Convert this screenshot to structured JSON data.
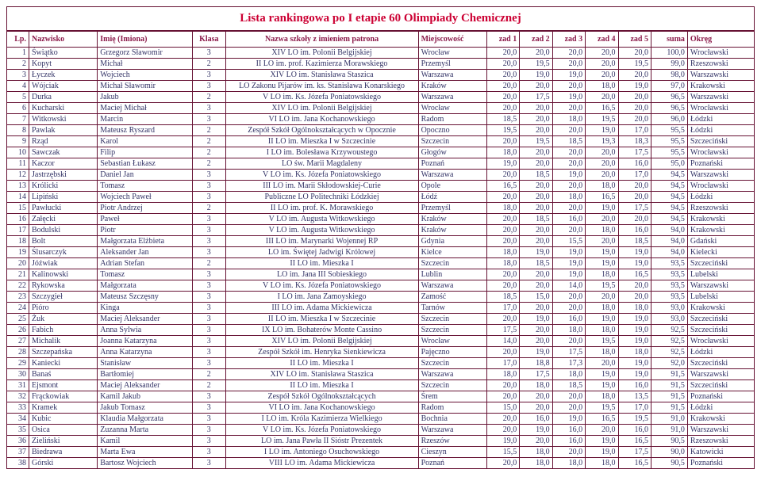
{
  "title": "Lista rankingowa po I etapie 60 Olimpiady Chemicznej",
  "title_color": "#cc0033",
  "border_color": "#661133",
  "header_color": "#8b1a4a",
  "row_color": "#333366",
  "columns": [
    {
      "key": "lp",
      "label": "Lp.",
      "cls": "num col-lp"
    },
    {
      "key": "nazwisko",
      "label": "Nazwisko",
      "cls": "col-nazwisko"
    },
    {
      "key": "imie",
      "label": "Imię (Imiona)",
      "cls": "col-imie"
    },
    {
      "key": "klasa",
      "label": "Klasa",
      "cls": "center col-klasa"
    },
    {
      "key": "szkola",
      "label": "Nazwa szkoły z imieniem patrona",
      "cls": "center col-szkola"
    },
    {
      "key": "miejsc",
      "label": "Miejscowość",
      "cls": "col-miejsc"
    },
    {
      "key": "z1",
      "label": "zad 1",
      "cls": "num col-zad"
    },
    {
      "key": "z2",
      "label": "zad 2",
      "cls": "num col-zad"
    },
    {
      "key": "z3",
      "label": "zad 3",
      "cls": "num col-zad"
    },
    {
      "key": "z4",
      "label": "zad 4",
      "cls": "num col-zad"
    },
    {
      "key": "z5",
      "label": "zad 5",
      "cls": "num col-zad"
    },
    {
      "key": "suma",
      "label": "suma",
      "cls": "num col-suma"
    },
    {
      "key": "okreg",
      "label": "Okręg",
      "cls": "col-okreg"
    }
  ],
  "rows": [
    {
      "lp": "1",
      "nazwisko": "Świątko",
      "imie": "Grzegorz Sławomir",
      "klasa": "3",
      "szkola": "XIV LO im. Polonii Belgijskiej",
      "miejsc": "Wrocław",
      "z1": "20,0",
      "z2": "20,0",
      "z3": "20,0",
      "z4": "20,0",
      "z5": "20,0",
      "suma": "100,0",
      "okreg": "Wrocławski"
    },
    {
      "lp": "2",
      "nazwisko": "Kopyt",
      "imie": "Michał",
      "klasa": "2",
      "szkola": "II LO im. prof. Kazimierza Morawskiego",
      "miejsc": "Przemyśl",
      "z1": "20,0",
      "z2": "19,5",
      "z3": "20,0",
      "z4": "20,0",
      "z5": "19,5",
      "suma": "99,0",
      "okreg": "Rzeszowski"
    },
    {
      "lp": "3",
      "nazwisko": "Łyczek",
      "imie": "Wojciech",
      "klasa": "3",
      "szkola": "XIV LO im. Stanisława Staszica",
      "miejsc": "Warszawa",
      "z1": "20,0",
      "z2": "19,0",
      "z3": "19,0",
      "z4": "20,0",
      "z5": "20,0",
      "suma": "98,0",
      "okreg": "Warszawski"
    },
    {
      "lp": "4",
      "nazwisko": "Wójciak",
      "imie": "Michał Sławomir",
      "klasa": "3",
      "szkola": "LO Zakonu Pijarów im. ks. Stanisława Konarskiego",
      "miejsc": "Kraków",
      "z1": "20,0",
      "z2": "20,0",
      "z3": "20,0",
      "z4": "18,0",
      "z5": "19,0",
      "suma": "97,0",
      "okreg": "Krakowski"
    },
    {
      "lp": "5",
      "nazwisko": "Durka",
      "imie": "Jakub",
      "klasa": "2",
      "szkola": "V LO im. Ks. Józefa Poniatowskiego",
      "miejsc": "Warszawa",
      "z1": "20,0",
      "z2": "17,5",
      "z3": "19,0",
      "z4": "20,0",
      "z5": "20,0",
      "suma": "96,5",
      "okreg": "Warszawski"
    },
    {
      "lp": "6",
      "nazwisko": "Kucharski",
      "imie": "Maciej Michał",
      "klasa": "3",
      "szkola": "XIV LO im. Polonii Belgijskiej",
      "miejsc": "Wrocław",
      "z1": "20,0",
      "z2": "20,0",
      "z3": "20,0",
      "z4": "16,5",
      "z5": "20,0",
      "suma": "96,5",
      "okreg": "Wrocławski"
    },
    {
      "lp": "7",
      "nazwisko": "Witkowski",
      "imie": "Marcin",
      "klasa": "3",
      "szkola": "VI LO im. Jana Kochanowskiego",
      "miejsc": "Radom",
      "z1": "18,5",
      "z2": "20,0",
      "z3": "18,0",
      "z4": "19,5",
      "z5": "20,0",
      "suma": "96,0",
      "okreg": "Łódzki"
    },
    {
      "lp": "8",
      "nazwisko": "Pawlak",
      "imie": "Mateusz Ryszard",
      "klasa": "2",
      "szkola": "Zespół Szkół Ogólnokształcących w Opocznie",
      "miejsc": "Opoczno",
      "z1": "19,5",
      "z2": "20,0",
      "z3": "20,0",
      "z4": "19,0",
      "z5": "17,0",
      "suma": "95,5",
      "okreg": "Łódzki"
    },
    {
      "lp": "9",
      "nazwisko": "Rząd",
      "imie": "Karol",
      "klasa": "2",
      "szkola": "II LO im. Mieszka I w Szczecinie",
      "miejsc": "Szczecin",
      "z1": "20,0",
      "z2": "19,5",
      "z3": "18,5",
      "z4": "19,3",
      "z5": "18,3",
      "suma": "95,5",
      "okreg": "Szczeciński"
    },
    {
      "lp": "10",
      "nazwisko": "Sawczak",
      "imie": "Filip",
      "klasa": "2",
      "szkola": "I LO im. Bolesława Krzywoustego",
      "miejsc": "Głogów",
      "z1": "18,0",
      "z2": "20,0",
      "z3": "20,0",
      "z4": "20,0",
      "z5": "17,5",
      "suma": "95,5",
      "okreg": "Wrocławski"
    },
    {
      "lp": "11",
      "nazwisko": "Kaczor",
      "imie": "Sebastian Łukasz",
      "klasa": "2",
      "szkola": "LO św. Marii Magdaleny",
      "miejsc": "Poznań",
      "z1": "19,0",
      "z2": "20,0",
      "z3": "20,0",
      "z4": "20,0",
      "z5": "16,0",
      "suma": "95,0",
      "okreg": "Poznański"
    },
    {
      "lp": "12",
      "nazwisko": "Jastrzębski",
      "imie": "Daniel Jan",
      "klasa": "3",
      "szkola": "V LO im. Ks. Józefa Poniatowskiego",
      "miejsc": "Warszawa",
      "z1": "20,0",
      "z2": "18,5",
      "z3": "19,0",
      "z4": "20,0",
      "z5": "17,0",
      "suma": "94,5",
      "okreg": "Warszawski"
    },
    {
      "lp": "13",
      "nazwisko": "Królicki",
      "imie": "Tomasz",
      "klasa": "3",
      "szkola": "III LO im. Marii Skłodowskiej-Curie",
      "miejsc": "Opole",
      "z1": "16,5",
      "z2": "20,0",
      "z3": "20,0",
      "z4": "18,0",
      "z5": "20,0",
      "suma": "94,5",
      "okreg": "Wrocławski"
    },
    {
      "lp": "14",
      "nazwisko": "Lipiński",
      "imie": "Wojciech Paweł",
      "klasa": "3",
      "szkola": "Publiczne LO Politechniki Łódzkiej",
      "miejsc": "Łódź",
      "z1": "20,0",
      "z2": "20,0",
      "z3": "18,0",
      "z4": "16,5",
      "z5": "20,0",
      "suma": "94,5",
      "okreg": "Łódzki"
    },
    {
      "lp": "15",
      "nazwisko": "Pawłucki",
      "imie": "Piotr Andrzej",
      "klasa": "2",
      "szkola": "II LO im. prof. K. Morawskiego",
      "miejsc": "Przemyśl",
      "z1": "18,0",
      "z2": "20,0",
      "z3": "20,0",
      "z4": "19,0",
      "z5": "17,5",
      "suma": "94,5",
      "okreg": "Rzeszowski"
    },
    {
      "lp": "16",
      "nazwisko": "Załęcki",
      "imie": "Paweł",
      "klasa": "3",
      "szkola": "V LO im. Augusta Witkowskiego",
      "miejsc": "Kraków",
      "z1": "20,0",
      "z2": "18,5",
      "z3": "16,0",
      "z4": "20,0",
      "z5": "20,0",
      "suma": "94,5",
      "okreg": "Krakowski"
    },
    {
      "lp": "17",
      "nazwisko": "Bodulski",
      "imie": "Piotr",
      "klasa": "3",
      "szkola": "V LO im. Augusta Witkowskiego",
      "miejsc": "Kraków",
      "z1": "20,0",
      "z2": "20,0",
      "z3": "20,0",
      "z4": "18,0",
      "z5": "16,0",
      "suma": "94,0",
      "okreg": "Krakowski"
    },
    {
      "lp": "18",
      "nazwisko": "Bolt",
      "imie": "Małgorzata Elżbieta",
      "klasa": "3",
      "szkola": "III LO im. Marynarki Wojennej RP",
      "miejsc": "Gdynia",
      "z1": "20,0",
      "z2": "20,0",
      "z3": "15,5",
      "z4": "20,0",
      "z5": "18,5",
      "suma": "94,0",
      "okreg": "Gdański"
    },
    {
      "lp": "19",
      "nazwisko": "Ślusarczyk",
      "imie": "Aleksander Jan",
      "klasa": "3",
      "szkola": "LO im. Świętej Jadwigi Królowej",
      "miejsc": "Kielce",
      "z1": "18,0",
      "z2": "19,0",
      "z3": "19,0",
      "z4": "19,0",
      "z5": "19,0",
      "suma": "94,0",
      "okreg": "Kielecki"
    },
    {
      "lp": "20",
      "nazwisko": "Jóźwiak",
      "imie": "Adrian Stefan",
      "klasa": "2",
      "szkola": "II LO im. Mieszka I",
      "miejsc": "Szczecin",
      "z1": "18,0",
      "z2": "18,5",
      "z3": "19,0",
      "z4": "19,0",
      "z5": "19,0",
      "suma": "93,5",
      "okreg": "Szczeciński"
    },
    {
      "lp": "21",
      "nazwisko": "Kalinowski",
      "imie": "Tomasz",
      "klasa": "3",
      "szkola": "LO im. Jana III Sobieskiego",
      "miejsc": "Lublin",
      "z1": "20,0",
      "z2": "20,0",
      "z3": "19,0",
      "z4": "18,0",
      "z5": "16,5",
      "suma": "93,5",
      "okreg": "Lubelski"
    },
    {
      "lp": "22",
      "nazwisko": "Rykowska",
      "imie": "Małgorzata",
      "klasa": "3",
      "szkola": "V LO im. Ks. Józefa Poniatowskiego",
      "miejsc": "Warszawa",
      "z1": "20,0",
      "z2": "20,0",
      "z3": "14,0",
      "z4": "19,5",
      "z5": "20,0",
      "suma": "93,5",
      "okreg": "Warszawski"
    },
    {
      "lp": "23",
      "nazwisko": "Szczygieł",
      "imie": "Mateusz Szczęsny",
      "klasa": "3",
      "szkola": "I LO im. Jana Zamoyskiego",
      "miejsc": "Zamość",
      "z1": "18,5",
      "z2": "15,0",
      "z3": "20,0",
      "z4": "20,0",
      "z5": "20,0",
      "suma": "93,5",
      "okreg": "Lubelski"
    },
    {
      "lp": "24",
      "nazwisko": "Pióro",
      "imie": "Kinga",
      "klasa": "3",
      "szkola": "III LO im. Adama Mickiewicza",
      "miejsc": "Tarnów",
      "z1": "17,0",
      "z2": "20,0",
      "z3": "20,0",
      "z4": "18,0",
      "z5": "18,0",
      "suma": "93,0",
      "okreg": "Krakowski"
    },
    {
      "lp": "25",
      "nazwisko": "Żuk",
      "imie": "Maciej Aleksander",
      "klasa": "3",
      "szkola": "II LO im. Mieszka I w Szczecinie",
      "miejsc": "Szczecin",
      "z1": "20,0",
      "z2": "19,0",
      "z3": "16,0",
      "z4": "19,0",
      "z5": "19,0",
      "suma": "93,0",
      "okreg": "Szczeciński"
    },
    {
      "lp": "26",
      "nazwisko": "Fabich",
      "imie": "Anna Sylwia",
      "klasa": "3",
      "szkola": "IX LO im. Bohaterów Monte Cassino",
      "miejsc": "Szczecin",
      "z1": "17,5",
      "z2": "20,0",
      "z3": "18,0",
      "z4": "18,0",
      "z5": "19,0",
      "suma": "92,5",
      "okreg": "Szczeciński"
    },
    {
      "lp": "27",
      "nazwisko": "Michalik",
      "imie": "Joanna Katarzyna",
      "klasa": "3",
      "szkola": "XIV LO im. Polonii Belgijskiej",
      "miejsc": "Wrocław",
      "z1": "14,0",
      "z2": "20,0",
      "z3": "20,0",
      "z4": "19,5",
      "z5": "19,0",
      "suma": "92,5",
      "okreg": "Wrocławski"
    },
    {
      "lp": "28",
      "nazwisko": "Szczepańska",
      "imie": "Anna Katarzyna",
      "klasa": "3",
      "szkola": "Zespół Szkół im. Henryka Sienkiewicza",
      "miejsc": "Pajęczno",
      "z1": "20,0",
      "z2": "19,0",
      "z3": "17,5",
      "z4": "18,0",
      "z5": "18,0",
      "suma": "92,5",
      "okreg": "Łódzki"
    },
    {
      "lp": "29",
      "nazwisko": "Kaniecki",
      "imie": "Stanisław",
      "klasa": "3",
      "szkola": "II LO im. Mieszka I",
      "miejsc": "Szczecin",
      "z1": "17,0",
      "z2": "18,8",
      "z3": "17,3",
      "z4": "20,0",
      "z5": "19,0",
      "suma": "92,0",
      "okreg": "Szczeciński"
    },
    {
      "lp": "30",
      "nazwisko": "Banaś",
      "imie": "Bartłomiej",
      "klasa": "2",
      "szkola": "XIV LO im. Stanisława Staszica",
      "miejsc": "Warszawa",
      "z1": "18,0",
      "z2": "17,5",
      "z3": "18,0",
      "z4": "19,0",
      "z5": "19,0",
      "suma": "91,5",
      "okreg": "Warszawski"
    },
    {
      "lp": "31",
      "nazwisko": "Ejsmont",
      "imie": "Maciej Aleksander",
      "klasa": "2",
      "szkola": "II LO im. Mieszka I",
      "miejsc": "Szczecin",
      "z1": "20,0",
      "z2": "18,0",
      "z3": "18,5",
      "z4": "19,0",
      "z5": "16,0",
      "suma": "91,5",
      "okreg": "Szczeciński"
    },
    {
      "lp": "32",
      "nazwisko": "Frąckowiak",
      "imie": "Kamil Jakub",
      "klasa": "3",
      "szkola": "Zespół Szkół Ogólnokształcących",
      "miejsc": "Śrem",
      "z1": "20,0",
      "z2": "20,0",
      "z3": "20,0",
      "z4": "18,0",
      "z5": "13,5",
      "suma": "91,5",
      "okreg": "Poznański"
    },
    {
      "lp": "33",
      "nazwisko": "Kramek",
      "imie": "Jakub Tomasz",
      "klasa": "3",
      "szkola": "VI LO im. Jana Kochanowskiego",
      "miejsc": "Radom",
      "z1": "15,0",
      "z2": "20,0",
      "z3": "20,0",
      "z4": "19,5",
      "z5": "17,0",
      "suma": "91,5",
      "okreg": "Łódzki"
    },
    {
      "lp": "34",
      "nazwisko": "Kubic",
      "imie": "Klaudia Małgorzata",
      "klasa": "3",
      "szkola": "I LO im. Króla Kazimierza Wielkiego",
      "miejsc": "Bochnia",
      "z1": "20,0",
      "z2": "16,0",
      "z3": "19,0",
      "z4": "16,5",
      "z5": "19,5",
      "suma": "91,0",
      "okreg": "Krakowski"
    },
    {
      "lp": "35",
      "nazwisko": "Osica",
      "imie": "Zuzanna Marta",
      "klasa": "3",
      "szkola": "V LO im. Ks. Józefa Poniatowskiego",
      "miejsc": "Warszawa",
      "z1": "20,0",
      "z2": "19,0",
      "z3": "16,0",
      "z4": "20,0",
      "z5": "16,0",
      "suma": "91,0",
      "okreg": "Warszawski"
    },
    {
      "lp": "36",
      "nazwisko": "Zieliński",
      "imie": "Kamil",
      "klasa": "3",
      "szkola": "LO im. Jana Pawła II Sióstr Prezentek",
      "miejsc": "Rzeszów",
      "z1": "19,0",
      "z2": "20,0",
      "z3": "16,0",
      "z4": "19,0",
      "z5": "16,5",
      "suma": "90,5",
      "okreg": "Rzeszowski"
    },
    {
      "lp": "37",
      "nazwisko": "Biedrawa",
      "imie": "Marta Ewa",
      "klasa": "3",
      "szkola": "I LO im. Antoniego Osuchowskiego",
      "miejsc": "Cieszyn",
      "z1": "15,5",
      "z2": "18,0",
      "z3": "20,0",
      "z4": "19,0",
      "z5": "17,5",
      "suma": "90,0",
      "okreg": "Katowicki"
    },
    {
      "lp": "38",
      "nazwisko": "Górski",
      "imie": "Bartosz Wojciech",
      "klasa": "3",
      "szkola": "VIII LO im. Adama Mickiewicza",
      "miejsc": "Poznań",
      "z1": "20,0",
      "z2": "18,0",
      "z3": "18,0",
      "z4": "18,0",
      "z5": "16,5",
      "suma": "90,5",
      "okreg": "Poznański"
    }
  ]
}
